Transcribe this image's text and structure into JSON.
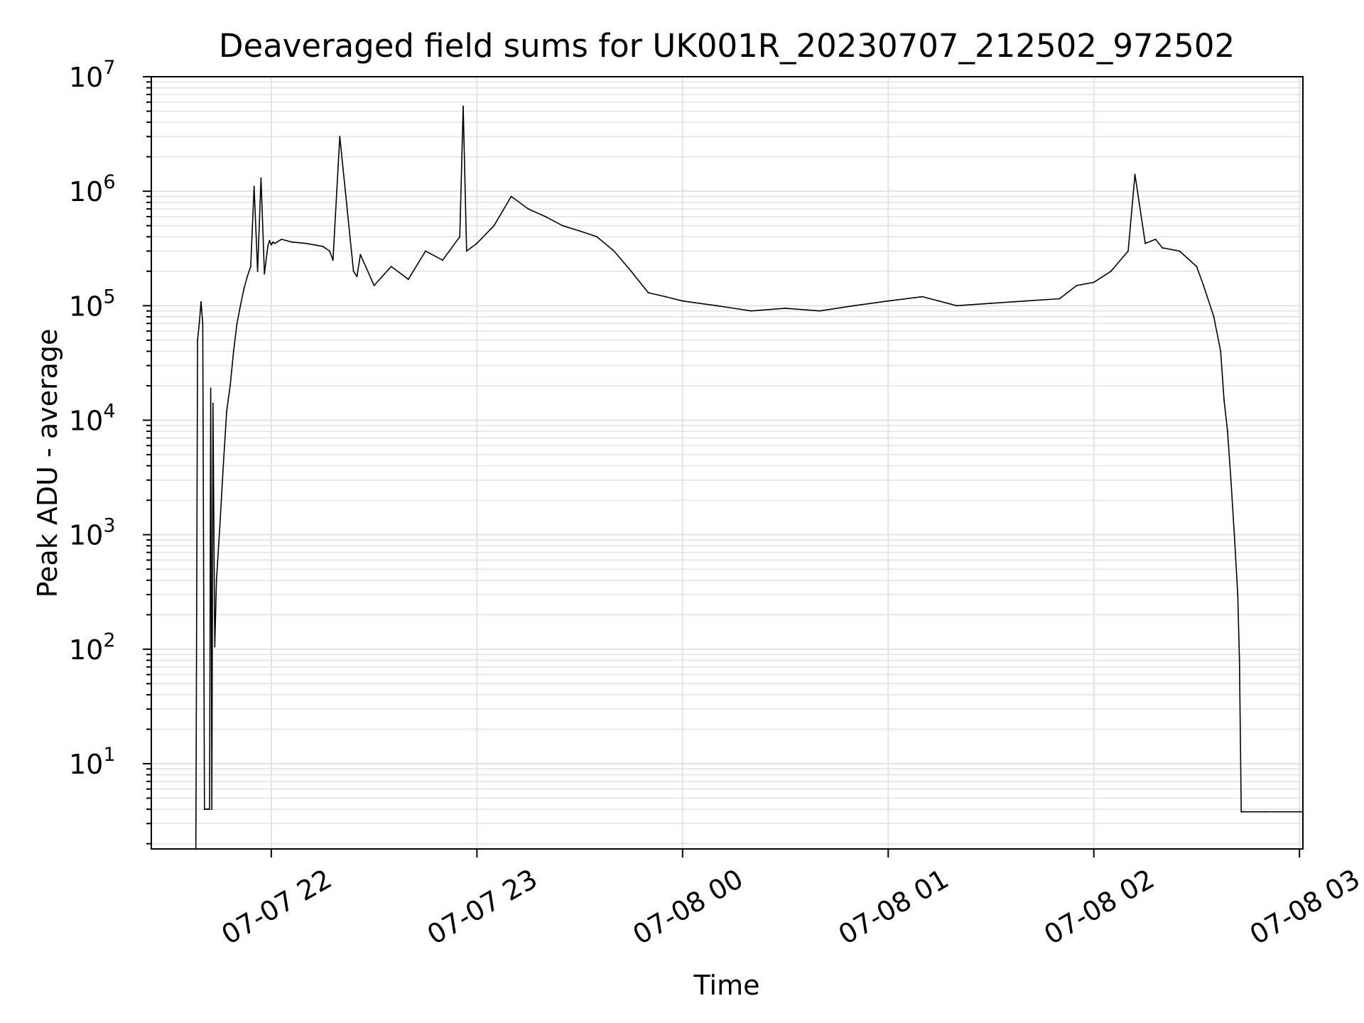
{
  "chart_data": {
    "type": "line",
    "title": "Deaveraged field sums for UK001R_20230707_212502_972502",
    "xlabel": "Time",
    "ylabel": "Peak ADU - average",
    "xscale": "time",
    "yscale": "log",
    "xlim": [
      "2023-07-07 21:25",
      "2023-07-08 03:01"
    ],
    "ylim": [
      1.8,
      10000000
    ],
    "grid": true,
    "legend": "none",
    "line_color": "#000000",
    "x_ticks": [
      {
        "time": "2023-07-07 22:00",
        "label": "07-07 22"
      },
      {
        "time": "2023-07-07 23:00",
        "label": "07-07 23"
      },
      {
        "time": "2023-07-08 00:00",
        "label": "07-08 00"
      },
      {
        "time": "2023-07-08 01:00",
        "label": "07-08 01"
      },
      {
        "time": "2023-07-08 02:00",
        "label": "07-08 02"
      },
      {
        "time": "2023-07-08 03:00",
        "label": "07-08 03"
      }
    ],
    "y_ticks": [
      {
        "value": 10,
        "base": "10",
        "exp": "1"
      },
      {
        "value": 100,
        "base": "10",
        "exp": "2"
      },
      {
        "value": 1000,
        "base": "10",
        "exp": "3"
      },
      {
        "value": 10000,
        "base": "10",
        "exp": "4"
      },
      {
        "value": 100000,
        "base": "10",
        "exp": "5"
      },
      {
        "value": 1000000,
        "base": "10",
        "exp": "6"
      },
      {
        "value": 10000000,
        "base": "10",
        "exp": "7"
      }
    ],
    "series": [
      {
        "x": [
          "2023-07-07 21:38:00",
          "2023-07-07 21:38:30",
          "2023-07-07 21:39:00",
          "2023-07-07 21:39:30",
          "2023-07-07 21:40:00",
          "2023-07-07 21:40:30",
          "2023-07-07 21:41:00",
          "2023-07-07 21:41:20",
          "2023-07-07 21:41:40",
          "2023-07-07 21:42:00",
          "2023-07-07 21:42:20",
          "2023-07-07 21:42:40",
          "2023-07-07 21:43:00",
          "2023-07-07 21:43:30",
          "2023-07-07 21:44:00",
          "2023-07-07 21:45:00",
          "2023-07-07 21:46:00",
          "2023-07-07 21:47:00",
          "2023-07-07 21:48:00",
          "2023-07-07 21:49:00",
          "2023-07-07 21:50:00",
          "2023-07-07 21:51:00",
          "2023-07-07 21:52:00",
          "2023-07-07 21:53:00",
          "2023-07-07 21:54:00",
          "2023-07-07 21:55:00",
          "2023-07-07 21:56:00",
          "2023-07-07 21:57:00",
          "2023-07-07 21:58:00",
          "2023-07-07 21:59:00",
          "2023-07-07 21:59:30",
          "2023-07-07 22:00:00",
          "2023-07-07 22:00:30",
          "2023-07-07 22:01:00",
          "2023-07-07 22:03:00",
          "2023-07-07 22:06:00",
          "2023-07-07 22:10:00",
          "2023-07-07 22:15:00",
          "2023-07-07 22:17:00",
          "2023-07-07 22:18:00",
          "2023-07-07 22:20:00",
          "2023-07-07 22:24:00",
          "2023-07-07 22:25:00",
          "2023-07-07 22:26:00",
          "2023-07-07 22:30:00",
          "2023-07-07 22:35:00",
          "2023-07-07 22:40:00",
          "2023-07-07 22:45:00",
          "2023-07-07 22:50:00",
          "2023-07-07 22:55:00",
          "2023-07-07 22:56:00",
          "2023-07-07 22:57:00",
          "2023-07-07 23:00:00",
          "2023-07-07 23:05:00",
          "2023-07-07 23:10:00",
          "2023-07-07 23:15:00",
          "2023-07-07 23:20:00",
          "2023-07-07 23:25:00",
          "2023-07-07 23:30:00",
          "2023-07-07 23:35:00",
          "2023-07-07 23:40:00",
          "2023-07-07 23:45:00",
          "2023-07-07 23:50:00",
          "2023-07-07 23:55:00",
          "2023-07-08 00:00:00",
          "2023-07-08 00:10:00",
          "2023-07-08 00:20:00",
          "2023-07-08 00:30:00",
          "2023-07-08 00:40:00",
          "2023-07-08 00:50:00",
          "2023-07-08 01:00:00",
          "2023-07-08 01:10:00",
          "2023-07-08 01:20:00",
          "2023-07-08 01:30:00",
          "2023-07-08 01:40:00",
          "2023-07-08 01:50:00",
          "2023-07-08 01:55:00",
          "2023-07-08 02:00:00",
          "2023-07-08 02:05:00",
          "2023-07-08 02:10:00",
          "2023-07-08 02:12:00",
          "2023-07-08 02:15:00",
          "2023-07-08 02:18:00",
          "2023-07-08 02:20:00",
          "2023-07-08 02:25:00",
          "2023-07-08 02:30:00",
          "2023-07-08 02:32:00",
          "2023-07-08 02:35:00",
          "2023-07-08 02:37:00",
          "2023-07-08 02:38:00",
          "2023-07-08 02:39:00",
          "2023-07-08 02:40:00",
          "2023-07-08 02:41:00",
          "2023-07-08 02:42:00",
          "2023-07-08 02:42:30",
          "2023-07-08 02:43:00",
          "2023-07-08 02:43:30",
          "2023-07-08 02:44:00",
          "2023-07-08 02:50:00",
          "2023-07-08 03:00:00",
          "2023-07-08 03:01:00"
        ],
        "y": [
          1.8,
          50000,
          70000,
          108000,
          70000,
          4,
          4,
          4,
          4,
          4,
          19000,
          4,
          14000,
          105,
          400,
          1200,
          4000,
          12000,
          20000,
          40000,
          70000,
          100000,
          140000,
          180000,
          220000,
          1100000,
          200000,
          1300000,
          190000,
          330000,
          370000,
          340000,
          360000,
          350000,
          380000,
          360000,
          350000,
          330000,
          300000,
          250000,
          3000000,
          200000,
          180000,
          280000,
          150000,
          220000,
          170000,
          300000,
          250000,
          400000,
          5500000,
          300000,
          350000,
          500000,
          900000,
          700000,
          600000,
          500000,
          450000,
          400000,
          300000,
          200000,
          130000,
          120000,
          110000,
          100000,
          90000,
          95000,
          90000,
          100000,
          110000,
          120000,
          100000,
          105000,
          110000,
          115000,
          150000,
          160000,
          200000,
          300000,
          1400000,
          350000,
          380000,
          320000,
          300000,
          220000,
          150000,
          80000,
          40000,
          15000,
          8000,
          3000,
          1000,
          300,
          80,
          3.8,
          3.8,
          3.8,
          3.8,
          3.8,
          3.8
        ]
      }
    ]
  }
}
